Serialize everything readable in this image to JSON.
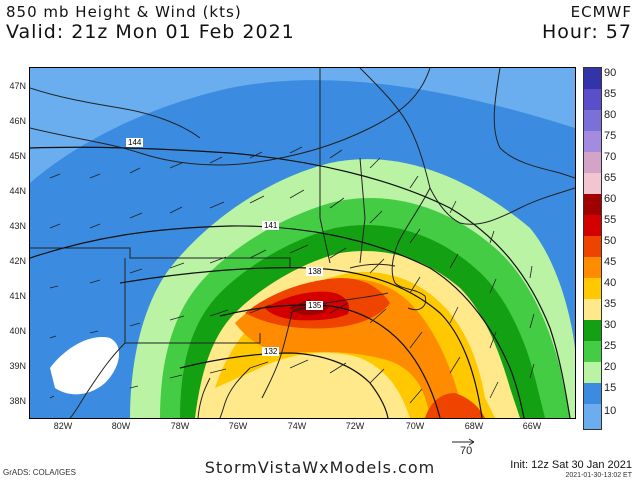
{
  "header": {
    "title": "850 mb Height & Wind (kts)",
    "valid": "Valid: 21z Mon 01 Feb 2021",
    "model": "ECMWF",
    "hour": "Hour: 57"
  },
  "map": {
    "latitudes": [
      "47N",
      "46N",
      "45N",
      "44N",
      "43N",
      "42N",
      "41N",
      "40N",
      "39N",
      "38N"
    ],
    "longitudes": [
      "82W",
      "80W",
      "78W",
      "76W",
      "74W",
      "72W",
      "70W",
      "68W",
      "66W"
    ],
    "height_contours": [
      "144",
      "141",
      "138",
      "135",
      "132"
    ]
  },
  "colorbar": {
    "levels": [
      "90",
      "85",
      "80",
      "75",
      "70",
      "65",
      "60",
      "55",
      "50",
      "45",
      "40",
      "35",
      "30",
      "25",
      "20",
      "15",
      "10"
    ],
    "colors": [
      "#3333aa",
      "#5a4fc8",
      "#7b6fd8",
      "#a38ce0",
      "#d4a3c8",
      "#f2c5d0",
      "#a00000",
      "#d40000",
      "#ee4400",
      "#ff8c00",
      "#ffc800",
      "#ffe98a",
      "#13a013",
      "#44cc44",
      "#b9f3a3",
      "#3b8ce0",
      "#6aaef0"
    ]
  },
  "reference_vector": {
    "label": "70"
  },
  "footer": {
    "site": "StormVistaWxModels.com",
    "credit": "GrADS: COLA/IGES",
    "init": "Init: 12z Sat 30 Jan 2021",
    "timestamp": "2021-01-30-13:02 ET"
  }
}
